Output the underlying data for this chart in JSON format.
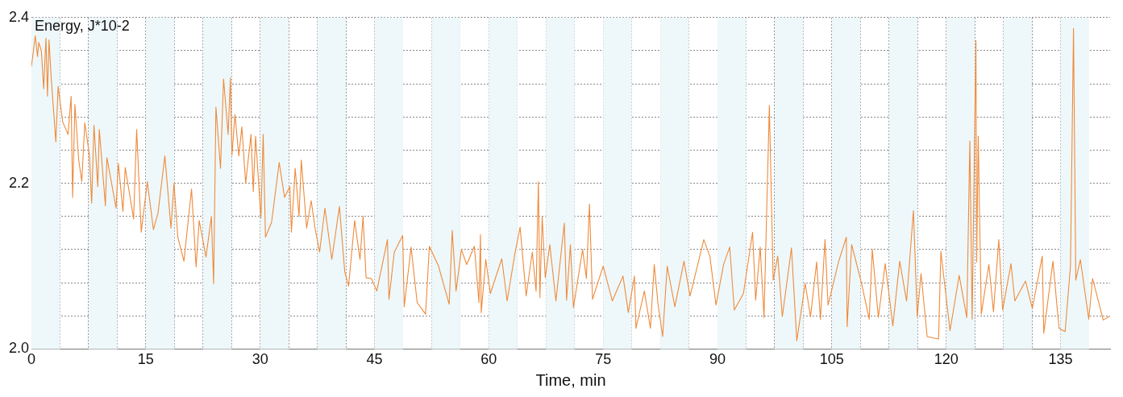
{
  "chart_data": {
    "type": "line",
    "xlabel": "Time, min",
    "ylabel": "Energy, J*10-2",
    "xlim": [
      0,
      141.5
    ],
    "ylim": [
      2.0,
      2.4
    ],
    "xticks": [
      0,
      {
        "value": 3.75,
        "label": null
      },
      {
        "value": 7.5,
        "label": null
      },
      {
        "value": 11.25,
        "label": null
      },
      15,
      {
        "value": 18.75,
        "label": null
      },
      {
        "value": 22.5,
        "label": null
      },
      {
        "value": 26.25,
        "label": null
      },
      30,
      {
        "value": 33.75,
        "label": null
      },
      {
        "value": 37.5,
        "label": null
      },
      {
        "value": 41.25,
        "label": null
      },
      45,
      {
        "value": 48.75,
        "label": null
      },
      {
        "value": 52.5,
        "label": null
      },
      {
        "value": 56.25,
        "label": null
      },
      60,
      {
        "value": 63.75,
        "label": null
      },
      {
        "value": 67.5,
        "label": null
      },
      {
        "value": 71.25,
        "label": null
      },
      75,
      {
        "value": 78.75,
        "label": null
      },
      {
        "value": 82.5,
        "label": null
      },
      {
        "value": 86.25,
        "label": null
      },
      90,
      {
        "value": 93.75,
        "label": null
      },
      {
        "value": 97.5,
        "label": null
      },
      {
        "value": 101.25,
        "label": null
      },
      105,
      {
        "value": 108.75,
        "label": null
      },
      {
        "value": 112.5,
        "label": null
      },
      {
        "value": 116.25,
        "label": null
      },
      120,
      {
        "value": 123.75,
        "label": null
      },
      {
        "value": 127.5,
        "label": null
      },
      {
        "value": 131.25,
        "label": null
      },
      135,
      {
        "value": 138.75,
        "label": null
      }
    ],
    "yticks": [
      {
        "value": 2.0,
        "label": "2.0"
      },
      {
        "value": 2.04,
        "label": null
      },
      {
        "value": 2.08,
        "label": null
      },
      {
        "value": 2.12,
        "label": null
      },
      {
        "value": 2.16,
        "label": null
      },
      2.2,
      {
        "value": 2.24,
        "label": null
      },
      {
        "value": 2.28,
        "label": null
      },
      {
        "value": 2.32,
        "label": null
      },
      {
        "value": 2.36,
        "label": null
      },
      2.4
    ],
    "grid": true,
    "legend": false,
    "marker": "none",
    "line_style": "solid",
    "bands": [
      {
        "axis": "x",
        "from": 0,
        "to": 3.75,
        "color": "#eef8fb"
      },
      {
        "axis": "x",
        "from": 7.5,
        "to": 11.25,
        "color": "#eef8fb"
      },
      {
        "axis": "x",
        "from": 15,
        "to": 18.75,
        "color": "#eef8fb"
      },
      {
        "axis": "x",
        "from": 22.5,
        "to": 26.25,
        "color": "#eef8fb"
      },
      {
        "axis": "x",
        "from": 30,
        "to": 33.75,
        "color": "#eef8fb"
      },
      {
        "axis": "x",
        "from": 37.5,
        "to": 41.25,
        "color": "#eef8fb"
      },
      {
        "axis": "x",
        "from": 45,
        "to": 48.75,
        "color": "#eef8fb"
      },
      {
        "axis": "x",
        "from": 52.5,
        "to": 56.25,
        "color": "#eef8fb"
      },
      {
        "axis": "x",
        "from": 60,
        "to": 63.75,
        "color": "#eef8fb"
      },
      {
        "axis": "x",
        "from": 67.5,
        "to": 71.25,
        "color": "#eef8fb"
      },
      {
        "axis": "x",
        "from": 75,
        "to": 78.75,
        "color": "#eef8fb"
      },
      {
        "axis": "x",
        "from": 82.5,
        "to": 86.25,
        "color": "#eef8fb"
      },
      {
        "axis": "x",
        "from": 90,
        "to": 93.75,
        "color": "#eef8fb"
      },
      {
        "axis": "x",
        "from": 97.5,
        "to": 101.25,
        "color": "#eef8fb"
      },
      {
        "axis": "x",
        "from": 105,
        "to": 108.75,
        "color": "#eef8fb"
      },
      {
        "axis": "x",
        "from": 112.5,
        "to": 116.25,
        "color": "#eef8fb"
      },
      {
        "axis": "x",
        "from": 120,
        "to": 123.75,
        "color": "#eef8fb"
      },
      {
        "axis": "x",
        "from": 127.5,
        "to": 131.25,
        "color": "#eef8fb"
      },
      {
        "axis": "x",
        "from": 135,
        "to": 138.75,
        "color": "#eef8fb"
      }
    ],
    "series": [
      {
        "color": "#ef8a3a",
        "x": [
          0,
          0.5,
          0.8,
          0.95,
          1.3,
          1.6,
          1.9,
          2.1,
          2.3,
          2.6,
          3.2,
          3.5,
          4.1,
          4.8,
          5.2,
          5.4,
          5.7,
          6.2,
          6.6,
          7.0,
          7.6,
          7.9,
          8.2,
          8.7,
          8.9,
          9.7,
          9.9,
          11.1,
          11.4,
          12.0,
          12.3,
          13.4,
          13.8,
          14.4,
          15.2,
          16.0,
          16.6,
          17.5,
          18.3,
          18.7,
          19.2,
          20.0,
          21.0,
          21.6,
          22.0,
          22.9,
          23.6,
          23.9,
          24.2,
          24.8,
          25.2,
          25.8,
          26.1,
          26.3,
          26.7,
          27.2,
          27.6,
          28.1,
          28.8,
          29.1,
          29.4,
          30.1,
          30.4,
          30.7,
          31.5,
          32.5,
          33.2,
          33.9,
          34.1,
          34.6,
          35.1,
          35.4,
          36.1,
          36.7,
          37.2,
          37.8,
          38.5,
          39.4,
          40.4,
          41.1,
          41.6,
          42.4,
          43.1,
          43.5,
          43.9,
          44.6,
          45.3,
          46.7,
          46.9,
          47.6,
          48.7,
          48.9,
          49.8,
          50.6,
          51.7,
          52.2,
          53.4,
          54.8,
          55.2,
          55.7,
          56.4,
          57.1,
          58.1,
          58.7,
          58.9,
          59.0,
          59.6,
          60.2,
          61.7,
          62.4,
          63.4,
          64.1,
          64.9,
          65.7,
          66.2,
          66.5,
          66.7,
          67.0,
          67.4,
          68.0,
          68.8,
          69.9,
          70.2,
          70.7,
          71.1,
          72.3,
          72.8,
          73.2,
          73.6,
          75.0,
          76.2,
          77.6,
          78.3,
          79.1,
          79.3,
          80.4,
          81.2,
          81.7,
          82.2,
          82.8,
          83.4,
          84.4,
          85.6,
          86.4,
          88.2,
          89.0,
          89.8,
          90.8,
          91.6,
          92.2,
          93.4,
          94.6,
          95.0,
          95.6,
          96.1,
          96.8,
          97.3,
          97.9,
          98.5,
          99.7,
          100.4,
          101.5,
          102.2,
          103.0,
          103.5,
          104.1,
          104.5,
          105.9,
          106.9,
          107.0,
          107.6,
          108.9,
          109.9,
          110.3,
          111.1,
          112.0,
          113.0,
          113.9,
          114.8,
          115.7,
          116.2,
          116.7,
          117.5,
          119.0,
          119.3,
          120.5,
          121.7,
          122.7,
          123.1,
          123.4,
          123.9,
          124.0,
          124.2,
          124.6,
          125.6,
          126.2,
          126.9,
          127.4,
          128.5,
          129.0,
          130.4,
          131.3,
          132.6,
          132.8,
          134.0,
          134.8,
          135.6,
          136.3,
          136.7,
          137.0,
          137.6,
          138.7,
          139.2,
          140.6,
          141.5
        ],
        "values": [
          2.341,
          2.378,
          2.353,
          2.37,
          2.36,
          2.314,
          2.375,
          2.305,
          2.373,
          2.326,
          2.25,
          2.317,
          2.274,
          2.259,
          2.305,
          2.183,
          2.295,
          2.228,
          2.202,
          2.273,
          2.234,
          2.176,
          2.27,
          2.196,
          2.265,
          2.173,
          2.231,
          2.17,
          2.224,
          2.166,
          2.219,
          2.157,
          2.265,
          2.141,
          2.202,
          2.144,
          2.164,
          2.233,
          2.146,
          2.2,
          2.135,
          2.106,
          2.193,
          2.099,
          2.155,
          2.111,
          2.16,
          2.079,
          2.292,
          2.218,
          2.326,
          2.259,
          2.327,
          2.234,
          2.283,
          2.233,
          2.268,
          2.2,
          2.259,
          2.19,
          2.257,
          2.158,
          2.259,
          2.135,
          2.153,
          2.225,
          2.183,
          2.196,
          2.141,
          2.218,
          2.16,
          2.228,
          2.146,
          2.179,
          2.146,
          2.117,
          2.17,
          2.108,
          2.172,
          2.093,
          2.076,
          2.155,
          2.108,
          2.16,
          2.086,
          2.085,
          2.07,
          2.132,
          2.06,
          2.117,
          2.137,
          2.051,
          2.123,
          2.056,
          2.042,
          2.124,
          2.1,
          2.054,
          2.143,
          2.07,
          2.12,
          2.102,
          2.124,
          2.056,
          2.138,
          2.044,
          2.108,
          2.067,
          2.109,
          2.058,
          2.114,
          2.147,
          2.064,
          2.117,
          2.07,
          2.202,
          2.062,
          2.16,
          2.086,
          2.126,
          2.058,
          2.152,
          2.059,
          2.126,
          2.05,
          2.12,
          2.085,
          2.175,
          2.06,
          2.1,
          2.058,
          2.088,
          2.044,
          2.088,
          2.025,
          2.07,
          2.025,
          2.102,
          2.054,
          2.015,
          2.1,
          2.051,
          2.106,
          2.064,
          2.132,
          2.112,
          2.053,
          2.102,
          2.123,
          2.047,
          2.067,
          2.141,
          2.059,
          2.123,
          2.038,
          2.294,
          2.083,
          2.112,
          2.039,
          2.122,
          2.01,
          2.079,
          2.039,
          2.105,
          2.036,
          2.132,
          2.053,
          2.106,
          2.135,
          2.027,
          2.126,
          2.079,
          2.036,
          2.12,
          2.038,
          2.103,
          2.028,
          2.106,
          2.058,
          2.167,
          2.039,
          2.091,
          2.015,
          2.012,
          2.118,
          2.022,
          2.089,
          2.038,
          2.251,
          2.036,
          2.372,
          2.105,
          2.257,
          2.042,
          2.102,
          2.045,
          2.132,
          2.047,
          2.103,
          2.058,
          2.082,
          2.049,
          2.112,
          2.019,
          2.106,
          2.025,
          2.021,
          2.1,
          2.387,
          2.083,
          2.108,
          2.036,
          2.085,
          2.035,
          2.04
        ]
      }
    ]
  }
}
